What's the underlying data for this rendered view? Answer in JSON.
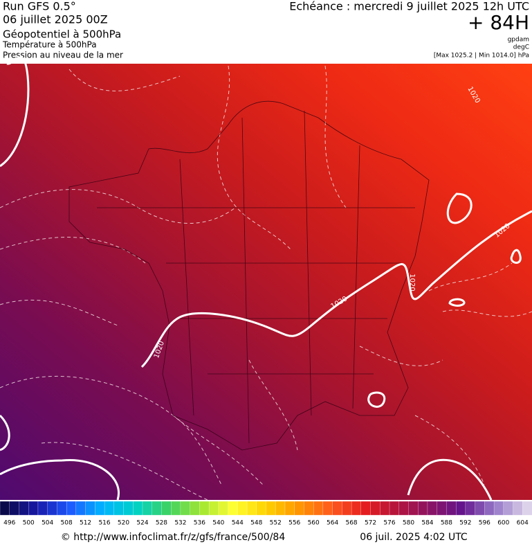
{
  "header": {
    "run": "Run GFS 0.5°",
    "run_date": "06 juillet 2025 00Z",
    "field": "Géopotentiel à 500hPa",
    "field2": "Température à 500hPa",
    "field3": "Pression au niveau de la mer",
    "echeance": "Echéance : mercredi 9 juillet 2025 12h UTC",
    "lead": "+ 84H",
    "unit1": "gpdam",
    "unit2": "degC",
    "range": "[Max 1025.2 | Min 1014.0] hPa"
  },
  "contour_labels": [
    "1020",
    "1020",
    "1020",
    "1020",
    "1020"
  ],
  "colorbar": {
    "labels": [
      "496",
      "500",
      "504",
      "508",
      "512",
      "516",
      "520",
      "524",
      "528",
      "532",
      "536",
      "540",
      "544",
      "548",
      "552",
      "556",
      "560",
      "564",
      "568",
      "572",
      "576",
      "580",
      "584",
      "588",
      "592",
      "596",
      "600",
      "604"
    ],
    "stops": [
      "#0a0a4a",
      "#1818a8",
      "#1e5aff",
      "#00b4ff",
      "#00d2c8",
      "#3cd264",
      "#a0e632",
      "#ffff32",
      "#ffd200",
      "#ff9600",
      "#ff5a1e",
      "#e61e1e",
      "#b4143c",
      "#8c1464",
      "#64148c",
      "#9678c8",
      "#dcd2ea"
    ]
  },
  "footer": {
    "credit": "© http://www.infoclimat.fr/z/gfs/france/500/84",
    "timestamp": "06 juil. 2025  4:02 UTC"
  }
}
